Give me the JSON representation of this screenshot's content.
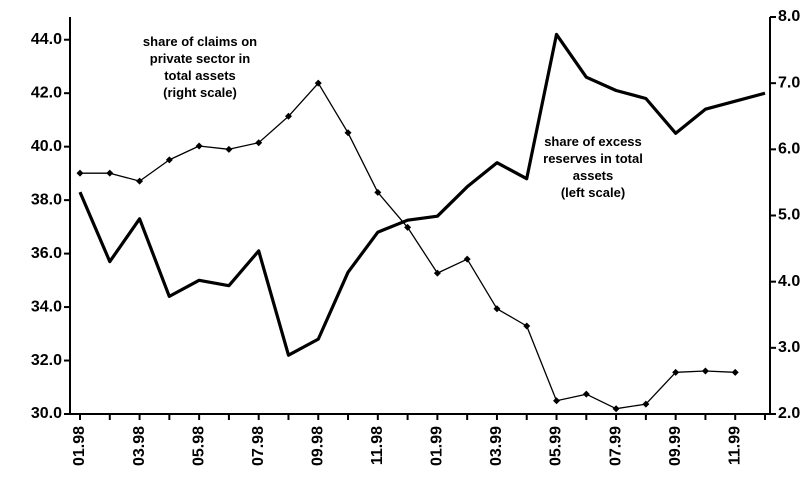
{
  "chart_data": {
    "type": "line",
    "categories": [
      "01.98",
      null,
      "03.98",
      null,
      "05.98",
      null,
      "07.98",
      null,
      "09.98",
      null,
      "11.98",
      null,
      "01.99",
      null,
      "03.99",
      null,
      "05.99",
      null,
      "07.99",
      null,
      "09.99",
      null,
      "11.99",
      null
    ],
    "series": [
      {
        "color": "#000000",
        "axis": "y",
        "values": [
          38.3,
          35.7,
          37.3,
          34.4,
          35.0,
          34.8,
          36.1,
          32.2,
          32.8,
          35.3,
          36.8,
          37.25,
          37.4,
          38.5,
          39.4,
          38.8,
          44.2,
          42.6,
          42.1,
          41.8,
          40.5,
          41.4,
          41.7,
          42.0
        ]
      },
      {
        "color": "#000000",
        "axis": "y2",
        "values": [
          5.64,
          5.64,
          5.52,
          5.84,
          6.05,
          6.0,
          6.1,
          6.5,
          7.0,
          6.25,
          5.35,
          4.82,
          4.13,
          4.34,
          3.59,
          3.33,
          2.2,
          2.3,
          2.08,
          2.15,
          2.63,
          2.65,
          2.63,
          null
        ]
      }
    ],
    "annotations": [
      {
        "lines": [
          "share of claims on",
          "private sector in",
          "total assets",
          "(right scale)"
        ]
      },
      {
        "lines": [
          "share of excess",
          "reserves in total",
          "assets",
          "(left scale)"
        ]
      }
    ],
    "ylim": [
      30,
      44.85
    ],
    "yticks": [
      {
        "value": 30,
        "label": "30.0"
      },
      {
        "value": 32,
        "label": "32.0"
      },
      {
        "value": 34,
        "label": "34.0"
      },
      {
        "value": 36,
        "label": "36.0"
      },
      {
        "value": 38,
        "label": "38.0"
      },
      {
        "value": 40,
        "label": "40.0"
      },
      {
        "value": 42,
        "label": "42.0"
      },
      {
        "value": 44,
        "label": "44.0"
      }
    ],
    "y2lim": [
      2,
      8
    ],
    "y2ticks": [
      {
        "value": 2,
        "label": "2.0"
      },
      {
        "value": 3,
        "label": "3.0"
      },
      {
        "value": 4,
        "label": "4.0"
      },
      {
        "value": 5,
        "label": "5.0"
      },
      {
        "value": 6,
        "label": "6.0"
      },
      {
        "value": 7,
        "label": "7.0"
      },
      {
        "value": 8,
        "label": "8.0"
      }
    ],
    "grid": false
  }
}
